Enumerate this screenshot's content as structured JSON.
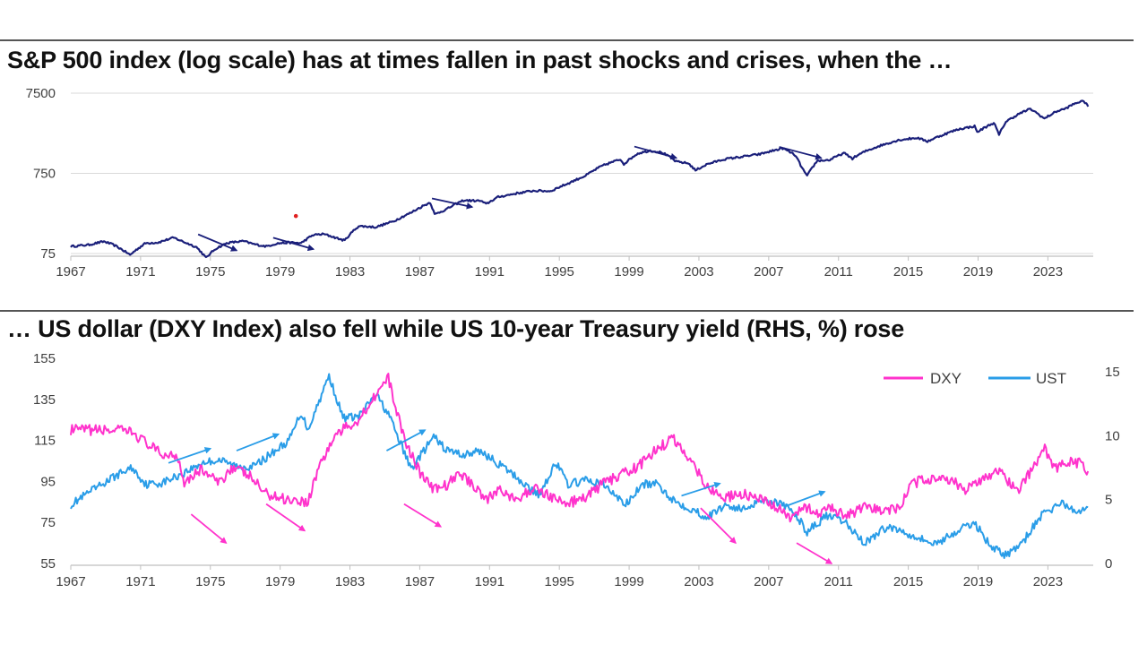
{
  "panels": {
    "top_title": "S&P 500 index (log scale) has at times fallen in past shocks and crises, when the …",
    "bottom_title": "… US dollar (DXY Index) also fell while US 10-year Treasury yield (RHS, %) rose"
  },
  "colors": {
    "sp500": "#1a1f7a",
    "dxy": "#ff33cc",
    "ust": "#2a9de8",
    "dot": "#e02020"
  },
  "chart_data": [
    {
      "type": "line",
      "scale": "log",
      "xlim": [
        1967,
        2025.6
      ],
      "ylim": [
        75,
        7500
      ],
      "yticks": [
        "7500",
        "750",
        "75"
      ],
      "xticks": [
        "1967",
        "1971",
        "1975",
        "1979",
        "1983",
        "1987",
        "1991",
        "1995",
        "1999",
        "2003",
        "2007",
        "2011",
        "2015",
        "2019",
        "2023"
      ],
      "series": [
        {
          "values": [
            [
              1967,
              92
            ],
            [
              1968,
              96
            ],
            [
              1968.9,
              106
            ],
            [
              1969.5,
              95
            ],
            [
              1970.4,
              72
            ],
            [
              1971.3,
              101
            ],
            [
              1972,
              103
            ],
            [
              1972.9,
              118
            ],
            [
              1973.5,
              104
            ],
            [
              1974.2,
              90
            ],
            [
              1974.75,
              66
            ],
            [
              1975.3,
              86
            ],
            [
              1976,
              102
            ],
            [
              1976.9,
              107
            ],
            [
              1977.5,
              98
            ],
            [
              1978.2,
              92
            ],
            [
              1978.8,
              100
            ],
            [
              1979.5,
              103
            ],
            [
              1980.2,
              101
            ],
            [
              1980.9,
              128
            ],
            [
              1981.5,
              131
            ],
            [
              1982.5,
              112
            ],
            [
              1982.7,
              109
            ],
            [
              1983.5,
              165
            ],
            [
              1984.5,
              160
            ],
            [
              1985.5,
              189
            ],
            [
              1986.5,
              242
            ],
            [
              1987.6,
              325
            ],
            [
              1987.85,
              230
            ],
            [
              1988.5,
              265
            ],
            [
              1989.5,
              345
            ],
            [
              1990.5,
              340
            ],
            [
              1990.8,
              310
            ],
            [
              1991.5,
              380
            ],
            [
              1992.5,
              420
            ],
            [
              1993.5,
              455
            ],
            [
              1994.5,
              450
            ],
            [
              1995.5,
              560
            ],
            [
              1996.5,
              700
            ],
            [
              1997.5,
              940
            ],
            [
              1998.5,
              1120
            ],
            [
              1998.7,
              980
            ],
            [
              1999.5,
              1330
            ],
            [
              2000.2,
              1440
            ],
            [
              2000.9,
              1360
            ],
            [
              2001.7,
              1050
            ],
            [
              2002.4,
              1000
            ],
            [
              2002.8,
              815
            ],
            [
              2003.5,
              980
            ],
            [
              2004.5,
              1130
            ],
            [
              2005.5,
              1210
            ],
            [
              2006.5,
              1300
            ],
            [
              2007.8,
              1540
            ],
            [
              2008.5,
              1270
            ],
            [
              2008.9,
              880
            ],
            [
              2009.2,
              690
            ],
            [
              2009.8,
              1080
            ],
            [
              2010.5,
              1100
            ],
            [
              2011.3,
              1340
            ],
            [
              2011.8,
              1150
            ],
            [
              2012.5,
              1400
            ],
            [
              2013.5,
              1690
            ],
            [
              2014.5,
              1960
            ],
            [
              2015.5,
              2080
            ],
            [
              2016.1,
              1880
            ],
            [
              2016.9,
              2230
            ],
            [
              2017.9,
              2670
            ],
            [
              2018.8,
              2900
            ],
            [
              2018.95,
              2450
            ],
            [
              2019.9,
              3200
            ],
            [
              2020.2,
              2250
            ],
            [
              2020.6,
              3300
            ],
            [
              2021.5,
              4300
            ],
            [
              2022,
              4770
            ],
            [
              2022.8,
              3600
            ],
            [
              2023.5,
              4450
            ],
            [
              2024,
              4800
            ],
            [
              2024.5,
              5500
            ],
            [
              2024.9,
              5950
            ],
            [
              2025.2,
              5700
            ],
            [
              2025.3,
              5100
            ]
          ]
        }
      ],
      "annotations": [
        {
          "type": "dot",
          "x": 1979.9,
          "y": 220
        },
        {
          "type": "arrow",
          "x": [
            1974.3,
            1976.5
          ],
          "y": [
            130,
            82
          ]
        },
        {
          "type": "arrow",
          "x": [
            1978.6,
            1980.9
          ],
          "y": [
            118,
            85
          ]
        },
        {
          "type": "arrow",
          "x": [
            1987.7,
            1990.0
          ],
          "y": [
            365,
            285
          ]
        },
        {
          "type": "arrow",
          "x": [
            1999.3,
            2001.7
          ],
          "y": [
            1620,
            1170
          ]
        },
        {
          "type": "arrow",
          "x": [
            2007.6,
            2010.0
          ],
          "y": [
            1600,
            1170
          ]
        }
      ]
    },
    {
      "type": "line",
      "xlim": [
        1967,
        2025.6
      ],
      "ylim": [
        55,
        155
      ],
      "yticks": [
        "155",
        "135",
        "115",
        "95",
        "75",
        "55"
      ],
      "ylim_right": [
        0,
        15
      ],
      "yticks_right": [
        "15",
        "10",
        "5",
        "0"
      ],
      "xticks": [
        "1967",
        "1971",
        "1975",
        "1979",
        "1983",
        "1987",
        "1991",
        "1995",
        "1999",
        "2003",
        "2007",
        "2011",
        "2015",
        "2019",
        "2023"
      ],
      "legend": [
        "DXY",
        "UST"
      ],
      "legend_position": "top-right",
      "series": [
        {
          "name": "DXY",
          "axis": "left",
          "values": [
            [
              1967,
              120
            ],
            [
              1969.5,
              120
            ],
            [
              1970.5,
              119
            ],
            [
              1971.3,
              114
            ],
            [
              1972.2,
              108
            ],
            [
              1973.1,
              108
            ],
            [
              1973.5,
              95
            ],
            [
              1974.5,
              101
            ],
            [
              1975.5,
              94
            ],
            [
              1976.2,
              102
            ],
            [
              1977.2,
              98
            ],
            [
              1978.2,
              89
            ],
            [
              1979,
              87
            ],
            [
              1979.8,
              86
            ],
            [
              1980.6,
              85
            ],
            [
              1981.2,
              102
            ],
            [
              1982.2,
              118
            ],
            [
              1983.5,
              125
            ],
            [
              1984.5,
              138
            ],
            [
              1985.2,
              145
            ],
            [
              1986.1,
              116
            ],
            [
              1987.1,
              98
            ],
            [
              1987.8,
              91
            ],
            [
              1988.5,
              93
            ],
            [
              1989.3,
              99
            ],
            [
              1990.1,
              93
            ],
            [
              1990.9,
              86
            ],
            [
              1991.6,
              92
            ],
            [
              1992.5,
              85
            ],
            [
              1993.5,
              92
            ],
            [
              1994.5,
              88
            ],
            [
              1995.3,
              84
            ],
            [
              1996.5,
              87
            ],
            [
              1997.5,
              94
            ],
            [
              1998.5,
              98
            ],
            [
              1999.5,
              102
            ],
            [
              2000.5,
              110
            ],
            [
              2001.5,
              116
            ],
            [
              2002.5,
              106
            ],
            [
              2003.5,
              92
            ],
            [
              2004.5,
              87
            ],
            [
              2005.5,
              89
            ],
            [
              2006.5,
              86
            ],
            [
              2007.5,
              82
            ],
            [
              2008.3,
              76
            ],
            [
              2008.9,
              84
            ],
            [
              2009.9,
              78
            ],
            [
              2010.5,
              83
            ],
            [
              2011.4,
              78
            ],
            [
              2012.5,
              82
            ],
            [
              2013.5,
              81
            ],
            [
              2014.5,
              82
            ],
            [
              2015.2,
              94
            ],
            [
              2016.5,
              97
            ],
            [
              2017.5,
              96
            ],
            [
              2018.2,
              90
            ],
            [
              2019.5,
              98
            ],
            [
              2020.3,
              100
            ],
            [
              2021.2,
              90
            ],
            [
              2022.3,
              103
            ],
            [
              2022.75,
              112
            ],
            [
              2023.4,
              101
            ],
            [
              2024.1,
              104
            ],
            [
              2024.8,
              104
            ],
            [
              2025.3,
              100
            ]
          ]
        },
        {
          "name": "UST",
          "axis": "right",
          "values": [
            [
              1967,
              4.6
            ],
            [
              1968,
              5.5
            ],
            [
              1969.5,
              6.8
            ],
            [
              1970.5,
              7.5
            ],
            [
              1971.3,
              6.2
            ],
            [
              1972.2,
              6.3
            ],
            [
              1973.2,
              6.9
            ],
            [
              1974.6,
              7.9
            ],
            [
              1975.5,
              8.1
            ],
            [
              1976.5,
              7.6
            ],
            [
              1977.5,
              7.6
            ],
            [
              1978.5,
              8.6
            ],
            [
              1979.5,
              9.6
            ],
            [
              1980.2,
              11.8
            ],
            [
              1980.6,
              10.5
            ],
            [
              1981.8,
              14.7
            ],
            [
              1982.6,
              11.4
            ],
            [
              1983.5,
              11.5
            ],
            [
              1984.5,
              13.2
            ],
            [
              1985.2,
              11.7
            ],
            [
              1986.5,
              7.4
            ],
            [
              1987.8,
              9.9
            ],
            [
              1988.5,
              8.9
            ],
            [
              1989.5,
              8.5
            ],
            [
              1990.5,
              8.8
            ],
            [
              1991.6,
              7.7
            ],
            [
              1992.5,
              6.8
            ],
            [
              1993.8,
              5.3
            ],
            [
              1994.8,
              7.9
            ],
            [
              1995.5,
              6.2
            ],
            [
              1996.5,
              6.5
            ],
            [
              1997.5,
              6.2
            ],
            [
              1998.8,
              4.6
            ],
            [
              1999.8,
              6.2
            ],
            [
              2000.6,
              6.2
            ],
            [
              2001.6,
              4.9
            ],
            [
              2002.5,
              4.3
            ],
            [
              2003.5,
              3.6
            ],
            [
              2004.5,
              4.6
            ],
            [
              2005.5,
              4.2
            ],
            [
              2006.5,
              5.0
            ],
            [
              2007.5,
              4.8
            ],
            [
              2008.5,
              3.9
            ],
            [
              2009.2,
              2.5
            ],
            [
              2010.3,
              3.7
            ],
            [
              2011.3,
              3.3
            ],
            [
              2012.5,
              1.6
            ],
            [
              2013.8,
              2.9
            ],
            [
              2014.5,
              2.6
            ],
            [
              2015.5,
              2.1
            ],
            [
              2016.5,
              1.5
            ],
            [
              2017.5,
              2.3
            ],
            [
              2018.8,
              3.2
            ],
            [
              2019.6,
              1.6
            ],
            [
              2020.5,
              0.6
            ],
            [
              2021.5,
              1.5
            ],
            [
              2022.5,
              3.6
            ],
            [
              2023.8,
              4.8
            ],
            [
              2024.5,
              4.0
            ],
            [
              2025.3,
              4.4
            ]
          ]
        }
      ],
      "annotations": [
        {
          "type": "arrow",
          "color": "dxy",
          "x": [
            1973.9,
            1975.9
          ],
          "y": [
            79,
            65
          ]
        },
        {
          "type": "arrow",
          "color": "dxy",
          "x": [
            1978.2,
            1980.4
          ],
          "y": [
            84,
            71
          ]
        },
        {
          "type": "arrow",
          "color": "dxy",
          "x": [
            1986.1,
            1988.2
          ],
          "y": [
            84,
            73
          ]
        },
        {
          "type": "arrow",
          "color": "dxy",
          "x": [
            2003.1,
            2005.1
          ],
          "y": [
            82,
            65
          ]
        },
        {
          "type": "arrow",
          "color": "dxy",
          "x": [
            2008.6,
            2010.6
          ],
          "y": [
            65,
            55
          ]
        },
        {
          "type": "arrow",
          "color": "ust",
          "x": [
            1972.6,
            1975.0
          ],
          "y": [
            104,
            111
          ]
        },
        {
          "type": "arrow",
          "color": "ust",
          "x": [
            1976.5,
            1978.9
          ],
          "y": [
            110,
            118
          ]
        },
        {
          "type": "arrow",
          "color": "ust",
          "x": [
            1985.1,
            1987.3
          ],
          "y": [
            110,
            120
          ]
        },
        {
          "type": "arrow",
          "color": "ust",
          "x": [
            2002.0,
            2004.2
          ],
          "y": [
            88,
            94
          ]
        },
        {
          "type": "arrow",
          "color": "ust",
          "x": [
            2008.0,
            2010.2
          ],
          "y": [
            83,
            90
          ]
        }
      ]
    }
  ]
}
